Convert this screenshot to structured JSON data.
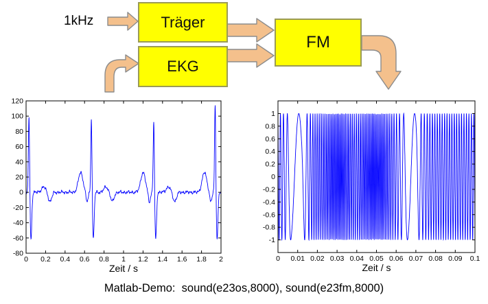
{
  "diagram": {
    "input_label": "1kHz",
    "boxes": [
      {
        "id": "traeger",
        "label": "Träger"
      },
      {
        "id": "ekg",
        "label": "EKG"
      },
      {
        "id": "fm",
        "label": "FM"
      }
    ]
  },
  "colors": {
    "box_fill": "#ffff00",
    "box_stroke": "#9b9b55",
    "arrow_fill": "#f4c08c",
    "arrow_stroke": "#8c8c8c",
    "axis": "#000000",
    "line": "#0000ff"
  },
  "caption": "Matlab-Demo:  sound(e23os,8000), sound(e23fm,8000)",
  "chart_data": [
    {
      "type": "line",
      "title": "",
      "xlabel": "Zeit / s",
      "ylabel": "",
      "xlim": [
        0,
        2
      ],
      "ylim": [
        -80,
        120
      ],
      "grid": false,
      "box": true,
      "line_color": "#0000ff",
      "xticks": {
        "values": [
          0,
          0.2,
          0.4,
          0.6,
          0.8,
          1,
          1.2,
          1.4,
          1.6,
          1.8,
          2
        ],
        "labels": [
          "0",
          "0.2",
          "0.4",
          "0.6",
          "0.8",
          "1",
          "1.2",
          "1.4",
          "1.6",
          "1.8",
          "2"
        ]
      },
      "yticks": {
        "values": [
          120,
          100,
          80,
          60,
          40,
          20,
          0,
          -20,
          -40,
          -60,
          -80
        ],
        "labels": [
          "120",
          "100",
          "80",
          "60",
          "40",
          "20",
          "0",
          "-20",
          "-40",
          "-60",
          "-80"
        ]
      },
      "waveform": {
        "kind": "ekg",
        "samples": 1001,
        "beats": [
          {
            "t": 0.03,
            "r": 104
          },
          {
            "t": 0.67,
            "r": 100
          },
          {
            "t": 1.31,
            "r": 96
          },
          {
            "t": 1.94,
            "r": 118
          }
        ],
        "r_sigma": 0.006,
        "s": {
          "dt": 0.02,
          "amp": -62,
          "sigma": 0.0085
        },
        "pre_wave": {
          "dt": -0.11,
          "amp": 26,
          "sigma": 0.024
        },
        "pre_dip": {
          "dt": -0.045,
          "amp": -13,
          "sigma": 0.011
        },
        "post_bump": {
          "dt": 0.15,
          "amp": 7,
          "sigma": 0.022
        },
        "post_dip": {
          "dt": 0.215,
          "amp": -12,
          "sigma": 0.018
        },
        "noise_amp": 1.1
      }
    },
    {
      "type": "line",
      "title": "",
      "xlabel": "Zeit / s",
      "ylabel": "",
      "xlim": [
        0,
        0.1
      ],
      "ylim": [
        -1.2,
        1.2
      ],
      "grid": false,
      "box": true,
      "line_color": "#0000ff",
      "xticks": {
        "values": [
          0,
          0.01,
          0.02,
          0.03,
          0.04,
          0.05,
          0.06,
          0.07,
          0.08,
          0.09,
          0.1
        ],
        "labels": [
          "0",
          "0.01",
          "0.02",
          "0.03",
          "0.04",
          "0.05",
          "0.06",
          "0.07",
          "0.08",
          "0.09",
          "0.1"
        ]
      },
      "yticks": {
        "values": [
          1,
          0.8,
          0.6,
          0.4,
          0.2,
          0,
          -0.2,
          -0.4,
          -0.6,
          -0.8,
          -1
        ],
        "labels": [
          "1",
          "0.8",
          "0.6",
          "0.4",
          "0.2",
          "0",
          "-0.2",
          "-0.4",
          "-0.6",
          "-0.8",
          "-1"
        ]
      },
      "waveform": {
        "kind": "fm",
        "samples": 2600,
        "phase0": 1.8,
        "amplitude": 1,
        "freq_profile": [
          [
            0,
            800
          ],
          [
            0.004,
            500
          ],
          [
            0.007,
            120
          ],
          [
            0.012,
            110
          ],
          [
            0.015,
            520
          ],
          [
            0.018,
            900
          ],
          [
            0.022,
            1000
          ],
          [
            0.027,
            1300
          ],
          [
            0.032,
            1500
          ],
          [
            0.036,
            1150
          ],
          [
            0.04,
            900
          ],
          [
            0.044,
            1300
          ],
          [
            0.048,
            1500
          ],
          [
            0.053,
            1400
          ],
          [
            0.057,
            1000
          ],
          [
            0.06,
            750
          ],
          [
            0.063,
            450
          ],
          [
            0.066,
            140
          ],
          [
            0.07,
            130
          ],
          [
            0.073,
            600
          ],
          [
            0.078,
            800
          ],
          [
            0.09,
            820
          ],
          [
            0.1,
            780
          ]
        ]
      }
    }
  ]
}
